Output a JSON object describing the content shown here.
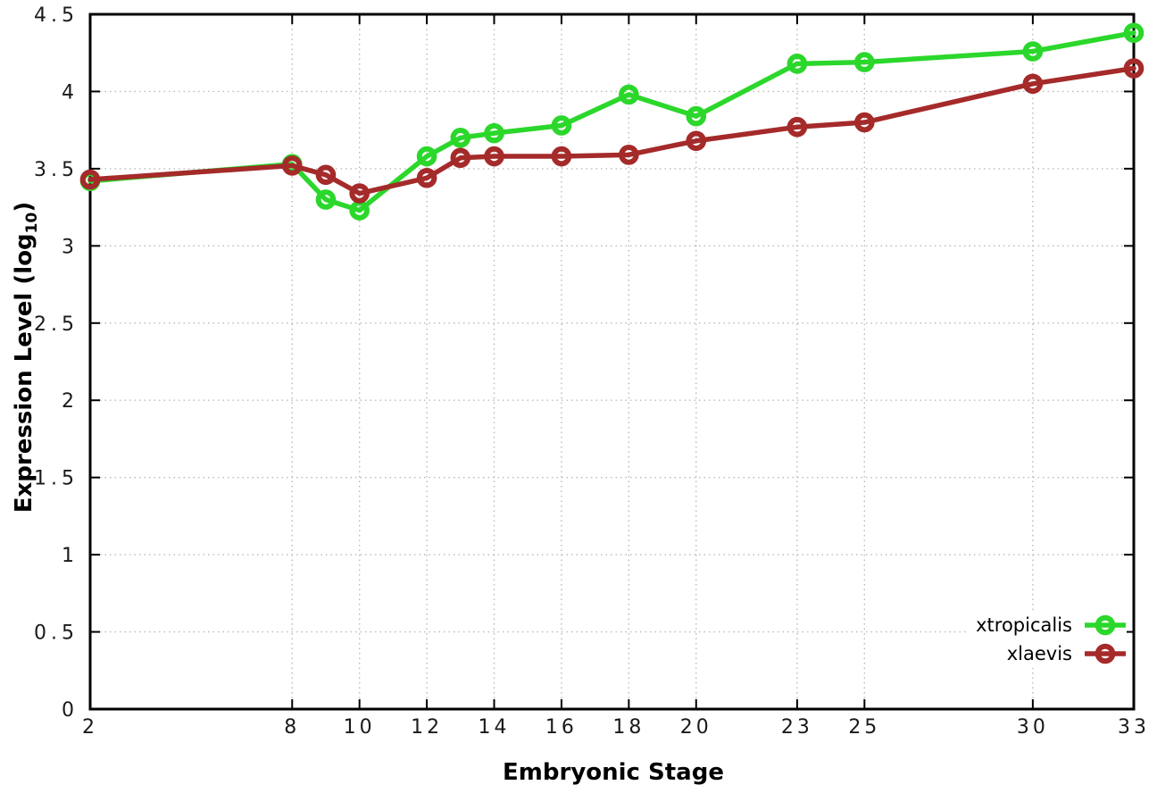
{
  "figure": {
    "background": "#ffffff"
  },
  "chart_data": {
    "type": "line",
    "title": "",
    "xlabel": "Embryonic Stage",
    "ylabel": "Expression Level (log10)",
    "ylabel_prefix": "Expression Level (log",
    "ylabel_subscript": "10",
    "ylabel_suffix": ")",
    "x": [
      2,
      8,
      9,
      10,
      12,
      13,
      14,
      16,
      18,
      20,
      23,
      25,
      30,
      33
    ],
    "xlim": [
      2,
      33
    ],
    "ylim": [
      0,
      4.5
    ],
    "xticks": [
      2,
      8,
      10,
      12,
      14,
      16,
      18,
      20,
      23,
      25,
      30,
      33
    ],
    "xtick_labels": [
      "2",
      "8",
      "10",
      "12",
      "14",
      "16",
      "18",
      "20",
      "23",
      "25",
      "30",
      "33"
    ],
    "yticks": [
      0,
      0.5,
      1,
      1.5,
      2,
      2.5,
      3,
      3.5,
      4,
      4.5
    ],
    "ytick_labels": [
      "0",
      "0.5",
      "1",
      "1.5",
      "2",
      "2.5",
      "3",
      "3.5",
      "4",
      "4.5"
    ],
    "grid": true,
    "grid_style": "dotted",
    "legend_position": "inside-bottom-right",
    "marker": "open-circle",
    "series": [
      {
        "name": "xtropicalis",
        "color": "#2bd72b",
        "values": [
          3.42,
          3.53,
          3.3,
          3.23,
          3.58,
          3.7,
          3.73,
          3.78,
          3.98,
          3.84,
          4.18,
          4.19,
          4.26,
          4.38
        ]
      },
      {
        "name": "xlaevis",
        "color": "#a52a2a",
        "values": [
          3.43,
          3.52,
          3.46,
          3.34,
          3.44,
          3.57,
          3.58,
          3.58,
          3.59,
          3.68,
          3.77,
          3.8,
          4.05,
          4.15
        ]
      }
    ]
  },
  "colors": {
    "axis": "#000000",
    "grid": "#b9b9b9",
    "tick_label": "#1a1a1a"
  }
}
